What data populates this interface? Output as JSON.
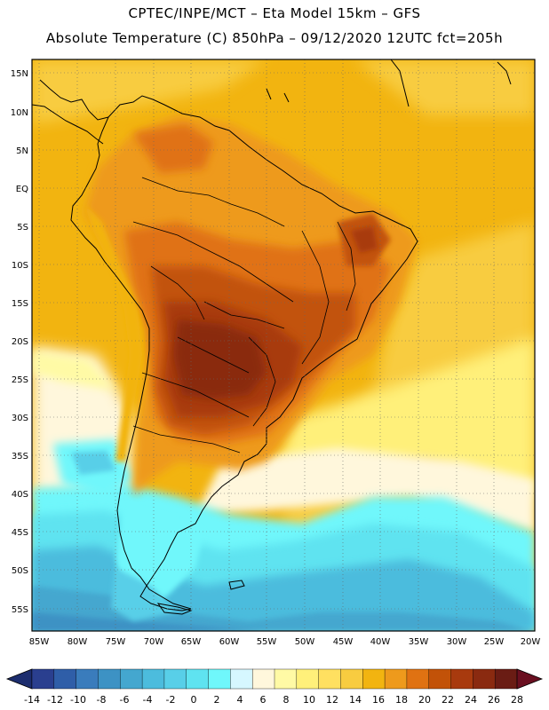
{
  "header": {
    "line1": "CPTEC/INPE/MCT –  Eta Model 15km – GFS",
    "line2": "Absolute Temperature (C) 850hPa – 09/12/2020 12UTC fct=205h"
  },
  "map": {
    "lat_labels": [
      "15N",
      "10N",
      "5N",
      "EQ",
      "5S",
      "10S",
      "15S",
      "20S",
      "25S",
      "30S",
      "35S",
      "40S",
      "45S",
      "50S",
      "55S"
    ],
    "lon_labels": [
      "85W",
      "80W",
      "75W",
      "70W",
      "65W",
      "60W",
      "55W",
      "50W",
      "45W",
      "40W",
      "35W",
      "30W",
      "25W",
      "20W"
    ]
  },
  "colorbar": {
    "colors": [
      "#2a3f8f",
      "#2f5ea8",
      "#3a7cbc",
      "#3d92c4",
      "#44a7cf",
      "#4cbcdd",
      "#58cfe8",
      "#5fe3f0",
      "#6ff7fb",
      "#d6f7ff",
      "#fff7dc",
      "#fffaa5",
      "#fff07a",
      "#ffe060",
      "#f8cc40",
      "#f2b410",
      "#ee9a1c",
      "#e07212",
      "#c25208",
      "#a83a0e",
      "#8a2a10",
      "#6a1c14"
    ],
    "tick_labels": [
      "-14",
      "-12",
      "-10",
      "-8",
      "-6",
      "-4",
      "-2",
      "0",
      "2",
      "4",
      "6",
      "8",
      "10",
      "12",
      "14",
      "16",
      "18",
      "20",
      "22",
      "24",
      "26",
      "28"
    ],
    "under_color": "#1c2d6e",
    "over_color": "#6a0f20"
  },
  "palette": {
    "ocean_warm": "#f2b410",
    "ocean_mild": "#f8cc40",
    "land_hot": "#c25208",
    "land_hottest": "#8a2a10",
    "cold": "#58cfe8"
  }
}
